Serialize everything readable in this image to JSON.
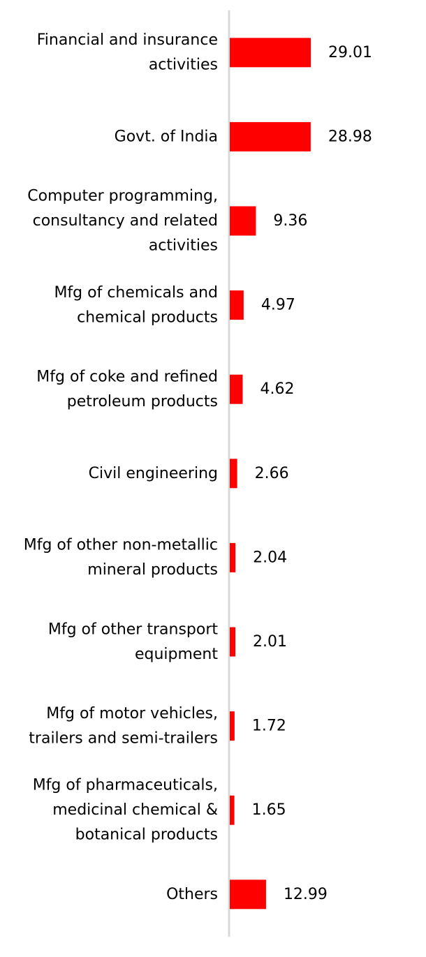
{
  "chart_data": {
    "type": "bar",
    "orientation": "horizontal",
    "categories": [
      "Financial and insurance activities",
      "Govt. of India",
      "Computer programming, consultancy and related activities",
      "Mfg of chemicals and chemical products",
      "Mfg of coke and refined petroleum products",
      "Civil engineering",
      "Mfg of other non-metallic mineral products",
      "Mfg of other transport equipment",
      "Mfg of motor vehicles, trailers and semi-trailers",
      "Mfg of pharmaceuticals, medicinal chemical & botanical products",
      "Others"
    ],
    "category_label_lines": [
      [
        "Financial and insurance",
        "activities"
      ],
      [
        "Govt. of India"
      ],
      [
        "Computer programming,",
        "consultancy and related",
        "activities"
      ],
      [
        "Mfg of chemicals and",
        "chemical products"
      ],
      [
        "Mfg of coke and refined",
        "petroleum products"
      ],
      [
        "Civil engineering"
      ],
      [
        "Mfg of other non-metallic",
        "mineral products"
      ],
      [
        "Mfg of other transport",
        "equipment"
      ],
      [
        "Mfg of motor vehicles,",
        "trailers and semi-trailers"
      ],
      [
        "Mfg of pharmaceuticals,",
        "medicinal chemical &",
        "botanical products"
      ],
      [
        "Others"
      ]
    ],
    "values": [
      29.01,
      28.98,
      9.36,
      4.97,
      4.62,
      2.66,
      2.04,
      2.01,
      1.72,
      1.65,
      12.99
    ],
    "value_labels": [
      "29.01",
      "28.98",
      "9.36",
      "4.97",
      "4.62",
      "2.66",
      "2.04",
      "2.01",
      "1.72",
      "1.65",
      "12.99"
    ],
    "title": "",
    "xlabel": "",
    "ylabel": "",
    "xlim": [
      0,
      75
    ],
    "grid": false,
    "legend": "none",
    "bar_color": "#ff0000",
    "axis_color": "#d9d9d9",
    "text_color": "#000000"
  }
}
